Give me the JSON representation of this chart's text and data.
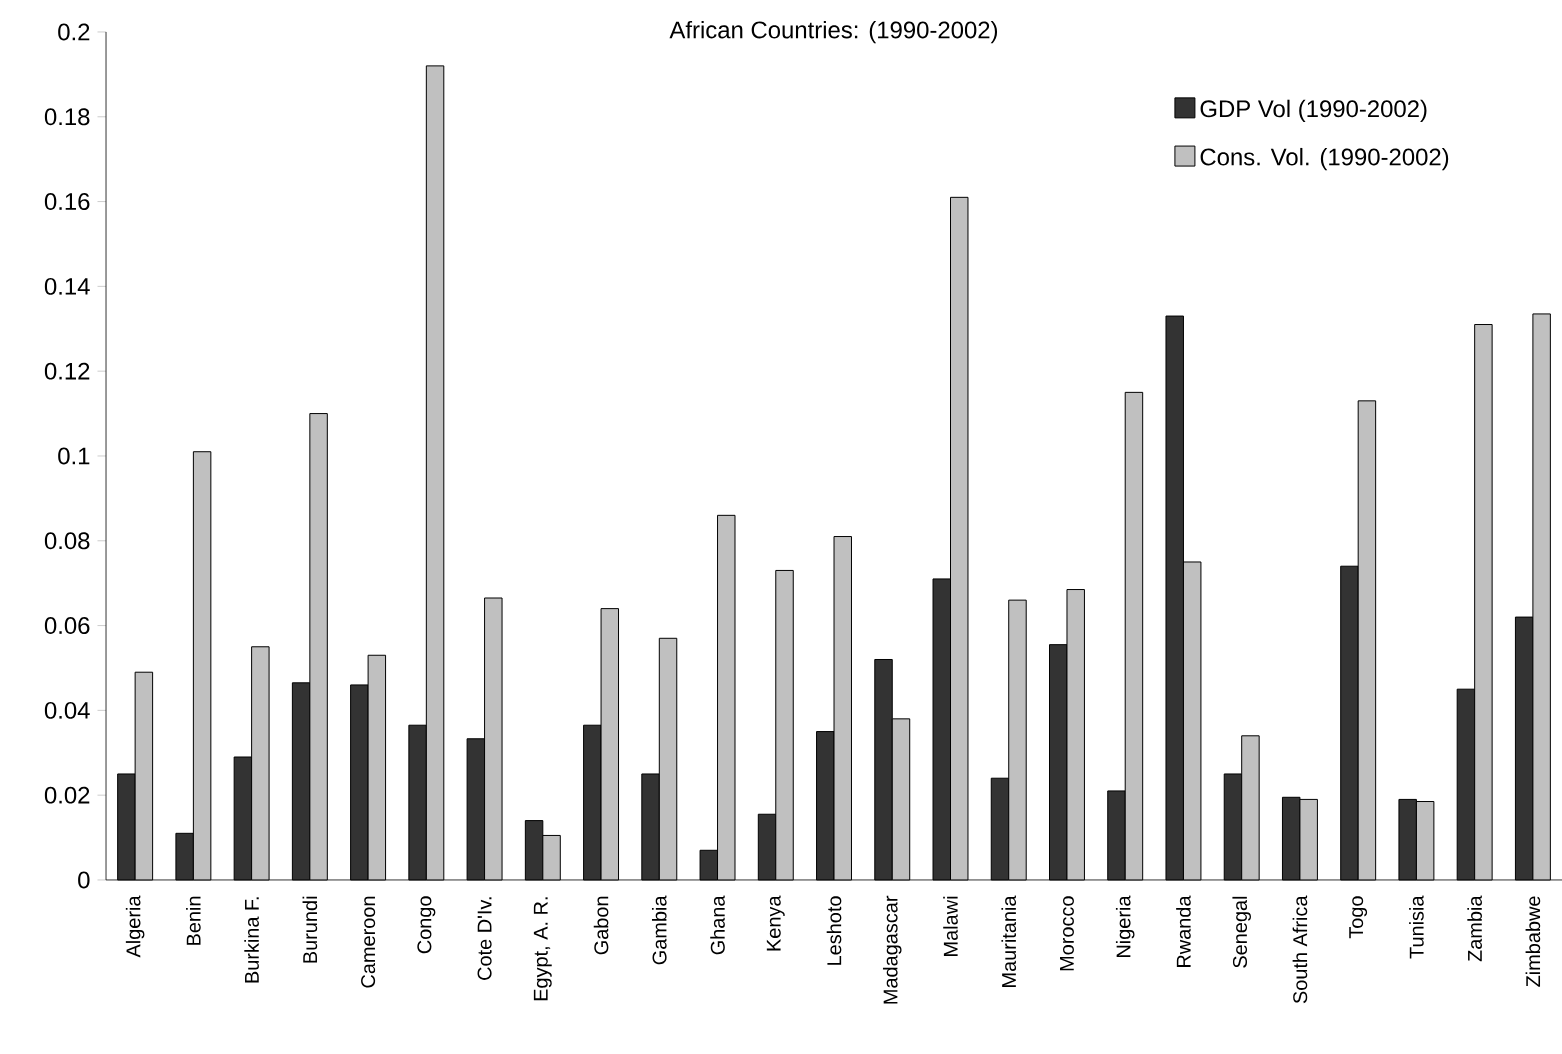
{
  "chart_data": {
    "type": "bar",
    "title": "African Countries: (1990-2002)",
    "categories": [
      "Algeria",
      "Benin",
      "Burkina F.",
      "Burundi",
      "Cameroon",
      "Congo",
      "Cote D'Iv.",
      "Egypt, A. R.",
      "Gabon",
      "Gambia",
      "Ghana",
      "Kenya",
      "Leshoto",
      "Madagascar",
      "Malawi",
      "Mauritania",
      "Morocco",
      "Nigeria",
      "Rwanda",
      "Senegal",
      "South Africa",
      "Togo",
      "Tunisia",
      "Zambia",
      "Zimbabwe"
    ],
    "series": [
      {
        "name": "GDP Vol (1990-2002)",
        "color": "#333333",
        "values": [
          0.025,
          0.011,
          0.029,
          0.0465,
          0.046,
          0.0365,
          0.0333,
          0.014,
          0.0365,
          0.025,
          0.007,
          0.0155,
          0.035,
          0.052,
          0.071,
          0.024,
          0.0555,
          0.021,
          0.133,
          0.025,
          0.0195,
          0.074,
          0.019,
          0.045,
          0.062
        ]
      },
      {
        "name": "Cons. Vol. (1990-2002)",
        "color": "#c0c0c0",
        "values": [
          0.049,
          0.101,
          0.055,
          0.11,
          0.053,
          0.192,
          0.0665,
          0.0105,
          0.064,
          0.057,
          0.086,
          0.073,
          0.081,
          0.038,
          0.161,
          0.066,
          0.0685,
          0.115,
          0.075,
          0.034,
          0.019,
          0.113,
          0.0185,
          0.131,
          0.1335
        ]
      }
    ],
    "ylim": [
      0,
      0.2
    ],
    "yticks": [
      0,
      0.02,
      0.04,
      0.06,
      0.08,
      0.1,
      0.12,
      0.14,
      0.16,
      0.18,
      0.2
    ],
    "grid": false,
    "legend": "top right"
  }
}
